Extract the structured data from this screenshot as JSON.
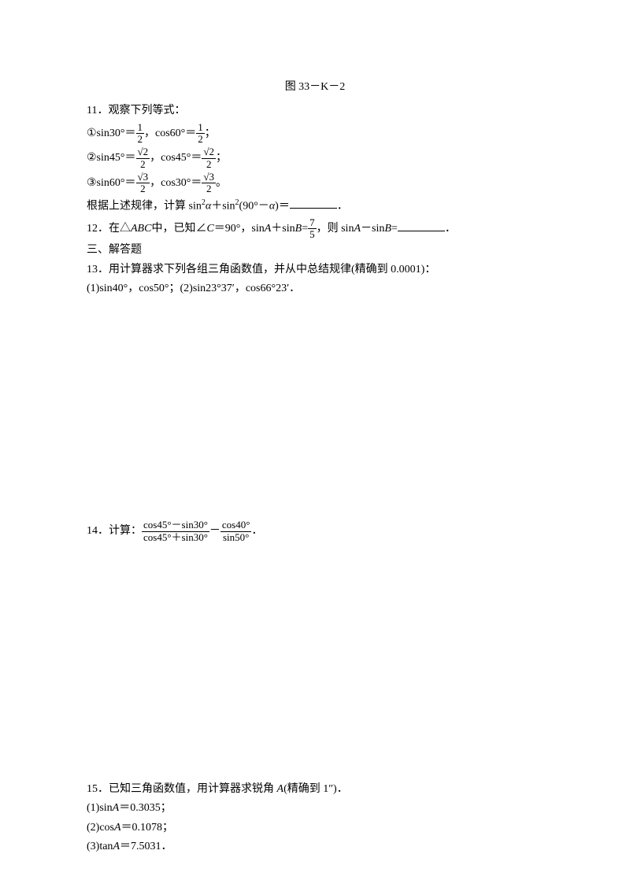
{
  "caption": "图 33－K－2",
  "q11": {
    "intro": "11．观察下列等式：",
    "eq1a": "①sin30°＝",
    "eq1b": "，cos60°＝",
    "eq1c": "；",
    "eq2a": "②sin45°＝",
    "eq2b": "，cos45°＝",
    "eq2c": "；",
    "eq3a": "③sin60°＝",
    "eq3b": "，cos30°＝",
    "eq3c": "。",
    "conclusion_a": "根据上述规律，计算 sin",
    "conclusion_b": "＋sin",
    "conclusion_c": "(90°－",
    "conclusion_d": ")＝",
    "conclusion_e": "．",
    "f1n": "1",
    "f1d": "2",
    "f2n": "√2",
    "f2d": "2",
    "f3n": "√3",
    "f3d": "2",
    "alpha": "α",
    "sq": "2"
  },
  "q12": {
    "a": "12．在△",
    "b": "中，已知∠",
    "c": "＝90°，sin",
    "d": "＋sin",
    "e": "=",
    "f": "，则 sin",
    "g": "－sin",
    "h": "=",
    "i": "．",
    "abc": "ABC",
    "C": "C",
    "A": "A",
    "B": "B",
    "fn": "7",
    "fd": "5"
  },
  "sec3": "三、解答题",
  "q13": {
    "a": "13．用计算器求下列各组三角函数值，并从中总结规律(精确到 0.0001)：",
    "b": "(1)sin40°，cos50°；(2)sin23°37′，cos66°23′．"
  },
  "q14": {
    "a": "14．计算：",
    "n1": "cos45°－sin30°",
    "d1": "cos45°＋sin30°",
    "mid": "－",
    "n2": "cos40°",
    "d2": "sin50°",
    "end": "．"
  },
  "q15": {
    "a": "15．已知三角函数值，用计算器求锐角 ",
    "b": "(精确到 1″)．",
    "A": "A",
    "l1a": "(1)sin",
    "l1b": "＝0.3035；",
    "l2a": "(2)cos",
    "l2b": "＝0.1078；",
    "l3a": "(3)tan",
    "l3b": "＝7.5031．"
  }
}
